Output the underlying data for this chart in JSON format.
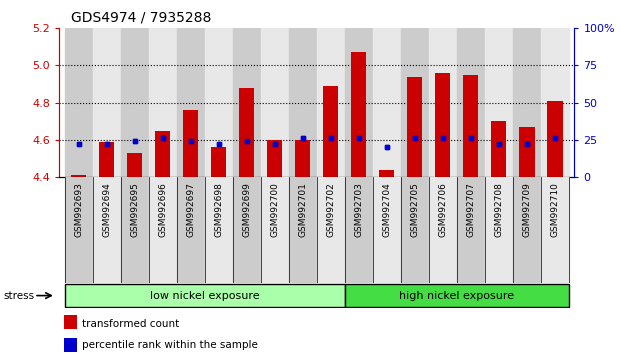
{
  "title": "GDS4974 / 7935288",
  "samples": [
    "GSM992693",
    "GSM992694",
    "GSM992695",
    "GSM992696",
    "GSM992697",
    "GSM992698",
    "GSM992699",
    "GSM992700",
    "GSM992701",
    "GSM992702",
    "GSM992703",
    "GSM992704",
    "GSM992705",
    "GSM992706",
    "GSM992707",
    "GSM992708",
    "GSM992709",
    "GSM992710"
  ],
  "transformed_count": [
    4.41,
    4.59,
    4.53,
    4.65,
    4.76,
    4.56,
    4.88,
    4.6,
    4.6,
    4.89,
    5.07,
    4.44,
    4.94,
    4.96,
    4.95,
    4.7,
    4.67,
    4.81
  ],
  "percentile_rank": [
    22,
    22,
    24,
    26,
    24,
    22,
    24,
    22,
    26,
    26,
    26,
    20,
    26,
    26,
    26,
    22,
    22,
    26
  ],
  "bar_color": "#cc0000",
  "dot_color": "#0000cc",
  "ylim_left": [
    4.4,
    5.2
  ],
  "ylim_right": [
    0,
    100
  ],
  "yticks_left": [
    4.4,
    4.6,
    4.8,
    5.0,
    5.2
  ],
  "yticks_right": [
    0,
    25,
    50,
    75,
    100
  ],
  "ytick_labels_right": [
    "0",
    "25",
    "50",
    "75",
    "100%"
  ],
  "grid_values": [
    4.6,
    4.8,
    5.0
  ],
  "bar_width": 0.55,
  "group_labels": [
    "low nickel exposure",
    "high nickel exposure"
  ],
  "group_split": 10,
  "group_color_low": "#aaffaa",
  "group_color_high": "#44dd44",
  "stress_label": "stress",
  "legend_items": [
    "transformed count",
    "percentile rank within the sample"
  ],
  "legend_colors": [
    "#cc0000",
    "#0000cc"
  ],
  "ax_color_left": "#cc0000",
  "ax_color_right": "#0000cc"
}
